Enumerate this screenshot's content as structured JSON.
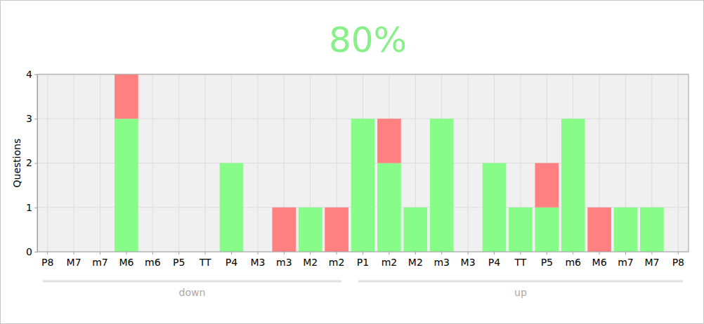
{
  "chart_data": {
    "type": "bar",
    "title": "80%",
    "y_label": "Questions",
    "categories": [
      "P8",
      "M7",
      "m7",
      "M6",
      "m6",
      "P5",
      "TT",
      "P4",
      "M3",
      "m3",
      "M2",
      "m2",
      "P1",
      "m2",
      "M2",
      "m3",
      "M3",
      "P4",
      "TT",
      "P5",
      "m6",
      "M6",
      "m7",
      "M7",
      "P8"
    ],
    "series": [
      {
        "color": "#88fc88",
        "values": [
          0,
          0,
          0,
          3,
          0,
          0,
          0,
          2,
          0,
          0,
          1,
          0,
          3,
          2,
          1,
          3,
          0,
          2,
          1,
          1,
          3,
          0,
          1,
          1,
          0
        ]
      },
      {
        "color": "#ff8080",
        "values": [
          0,
          0,
          0,
          1,
          0,
          0,
          0,
          0,
          0,
          1,
          0,
          1,
          0,
          1,
          0,
          0,
          0,
          0,
          0,
          1,
          0,
          1,
          0,
          0,
          0
        ]
      }
    ],
    "groups": [
      {
        "label": "down",
        "count": 12
      },
      {
        "label": "up",
        "count": 13
      }
    ],
    "stacked": true,
    "grid": true,
    "ylim": [
      0,
      4
    ],
    "yticks": [
      0,
      1,
      2,
      3,
      4
    ]
  }
}
